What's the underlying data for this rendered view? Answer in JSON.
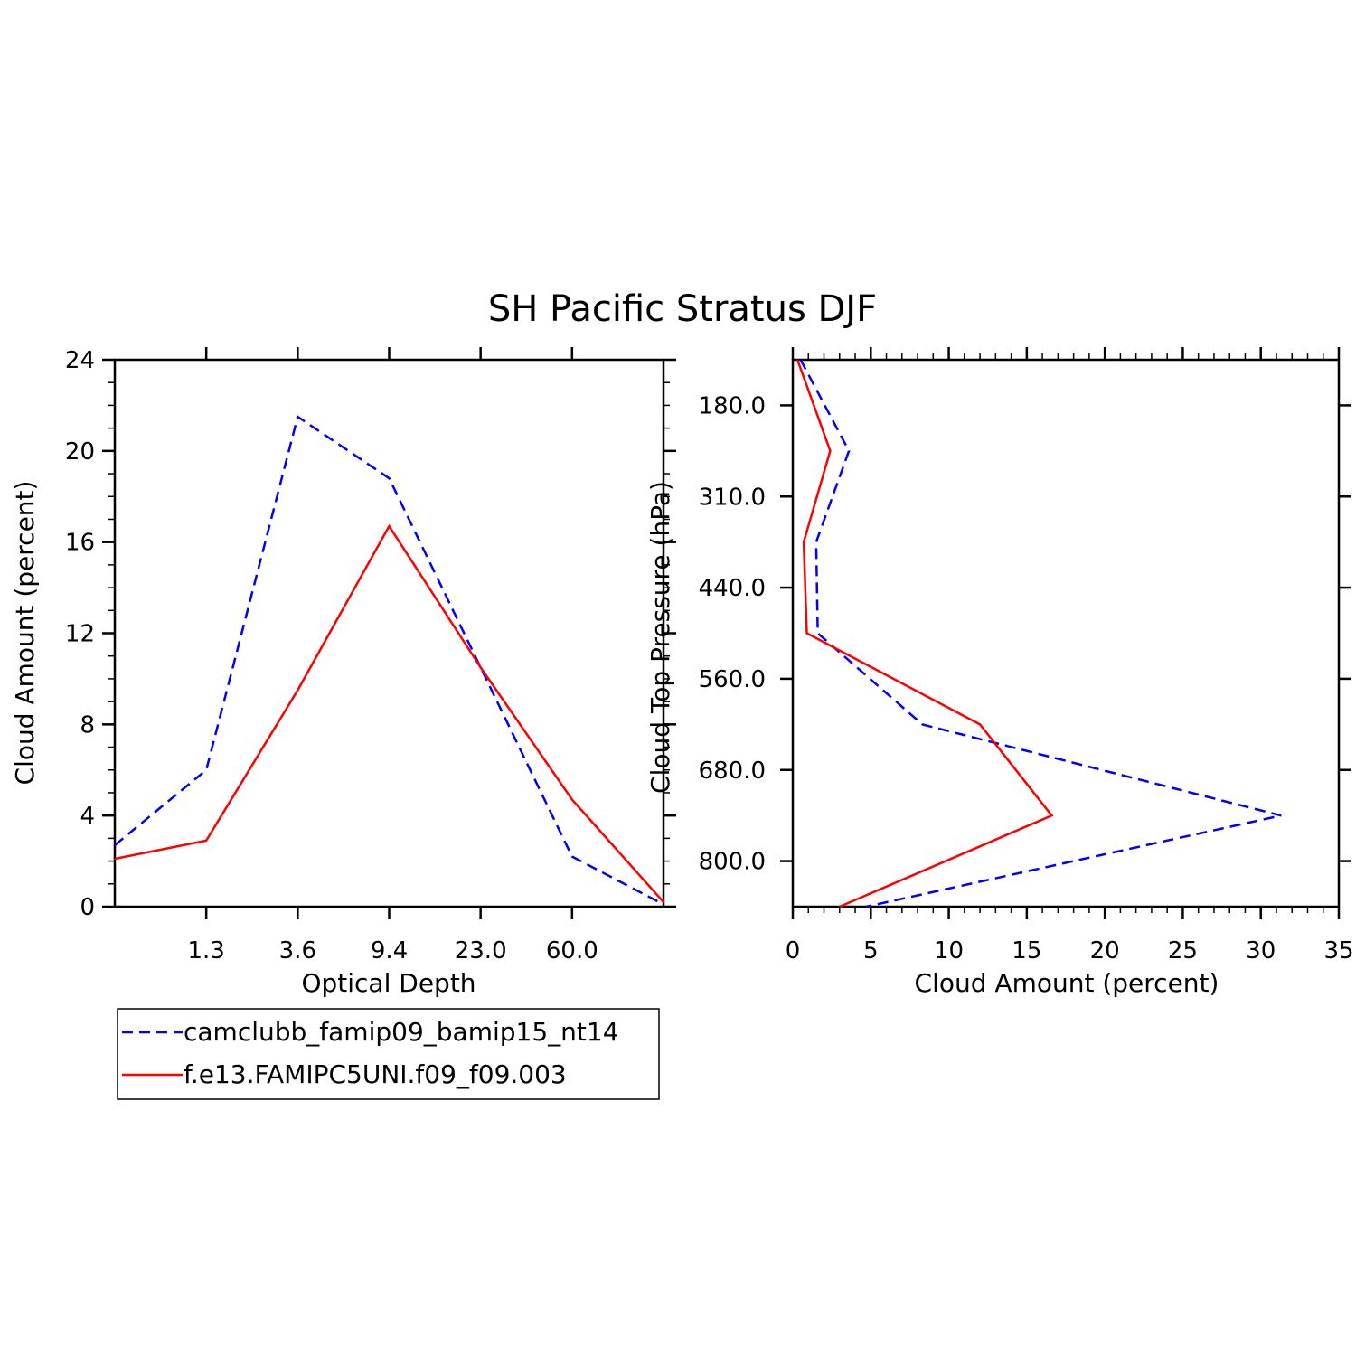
{
  "title": "SH Pacific Stratus DJF",
  "colors": {
    "series_a": "#0000ff",
    "series_b": "#ff0000",
    "axes": "#000000"
  },
  "legend": {
    "placement": "bottom-left",
    "entries": [
      {
        "label": "camclubb_famip09_bamip15_nt14",
        "color": "#0000ff",
        "dash": true
      },
      {
        "label": "f.e13.FAMIPC5UNI.f09_f09.003",
        "color": "#ff0000",
        "dash": false
      }
    ]
  },
  "chart_data": [
    {
      "type": "line",
      "xlabel": "Optical Depth",
      "ylabel": "Cloud Amount (percent)",
      "x_tick_labels": [
        "1.3",
        "3.6",
        "9.4",
        "23.0",
        "60.0"
      ],
      "y_ticks": [
        0,
        4,
        8,
        12,
        16,
        20,
        24
      ],
      "ylim": [
        0,
        24
      ],
      "grid": false,
      "series": [
        {
          "name": "camclubb_famip09_bamip15_nt14",
          "x_bins": [
            0,
            1,
            2,
            3,
            4,
            5,
            6
          ],
          "values": [
            2.7,
            6.0,
            21.5,
            18.8,
            10.5,
            2.2,
            0.1
          ]
        },
        {
          "name": "f.e13.FAMIPC5UNI.f09_f09.003",
          "x_bins": [
            0,
            1,
            2,
            3,
            4,
            5,
            6
          ],
          "values": [
            2.1,
            2.9,
            9.5,
            16.7,
            10.5,
            4.7,
            0.2
          ]
        }
      ]
    },
    {
      "type": "line",
      "xlabel": "Cloud Amount (percent)",
      "ylabel": "Cloud Top Pressure (hPa)",
      "x_ticks": [
        0,
        5,
        10,
        15,
        20,
        25,
        30,
        35
      ],
      "xlim": [
        0,
        35
      ],
      "y_tick_labels": [
        "180.0",
        "310.0",
        "440.0",
        "560.0",
        "680.0",
        "800.0"
      ],
      "grid": false,
      "series": [
        {
          "name": "camclubb_famip09_bamip15_nt14",
          "level_index": [
            0,
            1,
            2,
            3,
            4,
            5,
            6
          ],
          "values": [
            0.5,
            3.6,
            1.5,
            1.6,
            8.3,
            31.3,
            4.7
          ]
        },
        {
          "name": "f.e13.FAMIPC5UNI.f09_f09.003",
          "level_index": [
            0,
            1,
            2,
            3,
            4,
            5,
            6
          ],
          "values": [
            0.3,
            2.4,
            0.7,
            0.9,
            12.0,
            16.6,
            3.0
          ]
        }
      ]
    }
  ]
}
